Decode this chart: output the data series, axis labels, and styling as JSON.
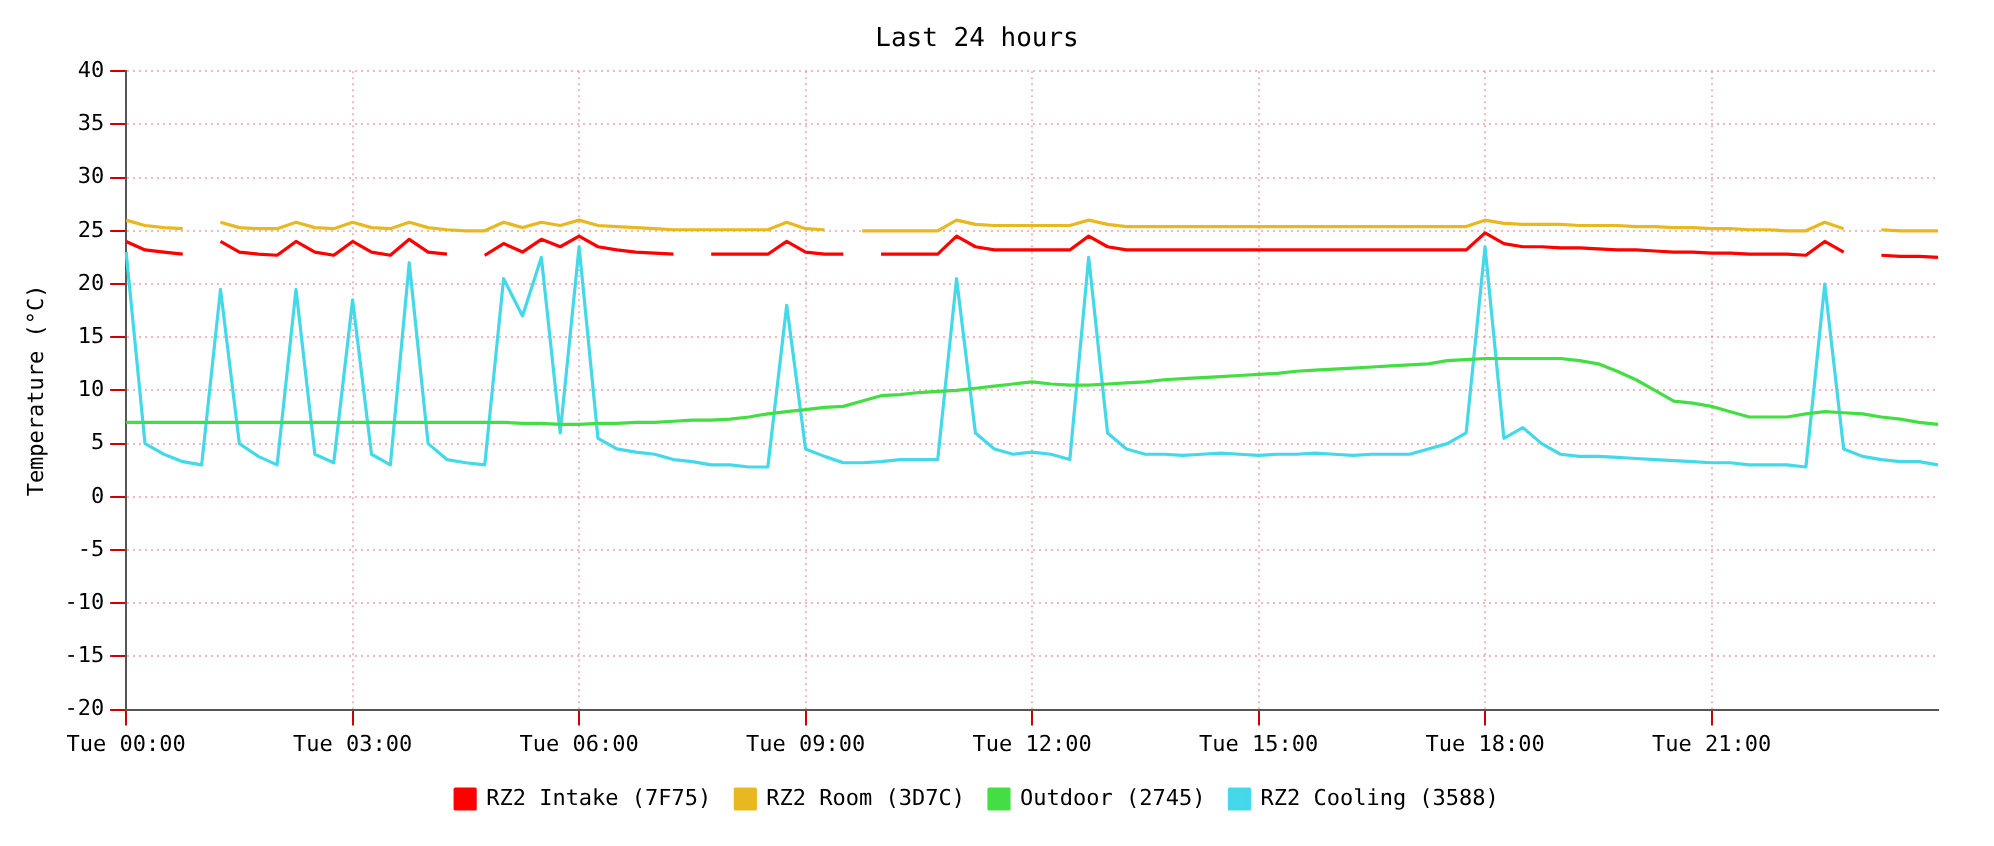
{
  "chart_data": {
    "type": "line",
    "title": "Last 24 hours",
    "ylabel": "Temperature (°C)",
    "categories": [
      "Tue 00:00",
      null,
      null,
      null,
      null,
      null,
      null,
      null,
      null,
      null,
      null,
      null,
      "Tue 03:00",
      null,
      null,
      null,
      null,
      null,
      null,
      null,
      null,
      null,
      null,
      null,
      "Tue 06:00",
      null,
      null,
      null,
      null,
      null,
      null,
      null,
      null,
      null,
      null,
      null,
      "Tue 09:00",
      null,
      null,
      null,
      null,
      null,
      null,
      null,
      null,
      null,
      null,
      null,
      "Tue 12:00",
      null,
      null,
      null,
      null,
      null,
      null,
      null,
      null,
      null,
      null,
      null,
      "Tue 15:00",
      null,
      null,
      null,
      null,
      null,
      null,
      null,
      null,
      null,
      null,
      null,
      "Tue 18:00",
      null,
      null,
      null,
      null,
      null,
      null,
      null,
      null,
      null,
      null,
      null,
      "Tue 21:00",
      null,
      null,
      null,
      null,
      null,
      null,
      null,
      null,
      null,
      null,
      null,
      null
    ],
    "ylim": [
      -20,
      40
    ],
    "yticks": [
      -20,
      -15,
      -10,
      -5,
      0,
      5,
      10,
      15,
      20,
      25,
      30,
      35,
      40
    ],
    "grid": true,
    "legend": "bottom",
    "series": [
      {
        "name": "RZ2 Intake (7F75)",
        "color": "#ff0000",
        "values": [
          24,
          23.2,
          23,
          22.8,
          null,
          24,
          23,
          22.8,
          22.7,
          24,
          23,
          22.7,
          24,
          23,
          22.7,
          24.2,
          23,
          22.8,
          null,
          22.7,
          23.8,
          23,
          24.2,
          23.5,
          24.5,
          23.5,
          23.2,
          23,
          22.9,
          22.8,
          null,
          22.8,
          22.8,
          22.8,
          22.8,
          24,
          23,
          22.8,
          22.8,
          null,
          22.8,
          22.8,
          22.8,
          22.8,
          24.5,
          23.5,
          23.2,
          23.2,
          23.2,
          23.2,
          23.2,
          24.5,
          23.5,
          23.2,
          23.2,
          23.2,
          23.2,
          23.2,
          23.2,
          23.2,
          23.2,
          23.2,
          23.2,
          23.2,
          23.2,
          23.2,
          23.2,
          23.2,
          23.2,
          23.2,
          23.2,
          23.2,
          24.8,
          23.8,
          23.5,
          23.5,
          23.4,
          23.4,
          23.3,
          23.2,
          23.2,
          23.1,
          23,
          23,
          22.9,
          22.9,
          22.8,
          22.8,
          22.8,
          22.7,
          24,
          23,
          null,
          22.7,
          22.6,
          22.6,
          22.5
        ]
      },
      {
        "name": "RZ2 Room (3D7C)",
        "color": "#e8b820",
        "values": [
          26,
          25.5,
          25.3,
          25.2,
          null,
          25.8,
          25.3,
          25.2,
          25.2,
          25.8,
          25.3,
          25.2,
          25.8,
          25.3,
          25.2,
          25.8,
          25.3,
          25.1,
          25,
          25,
          25.8,
          25.3,
          25.8,
          25.5,
          26,
          25.5,
          25.4,
          25.3,
          25.2,
          25.1,
          25.1,
          25.1,
          25.1,
          25.1,
          25.1,
          25.8,
          25.2,
          25.1,
          null,
          25,
          25,
          25,
          25,
          25,
          26,
          25.6,
          25.5,
          25.5,
          25.5,
          25.5,
          25.5,
          26,
          25.6,
          25.4,
          25.4,
          25.4,
          25.4,
          25.4,
          25.4,
          25.4,
          25.4,
          25.4,
          25.4,
          25.4,
          25.4,
          25.4,
          25.4,
          25.4,
          25.4,
          25.4,
          25.4,
          25.4,
          26,
          25.7,
          25.6,
          25.6,
          25.6,
          25.5,
          25.5,
          25.5,
          25.4,
          25.4,
          25.3,
          25.3,
          25.2,
          25.2,
          25.1,
          25.1,
          25,
          25,
          25.8,
          25.2,
          null,
          25.1,
          25,
          25,
          25
        ]
      },
      {
        "name": "Outdoor (2745)",
        "color": "#44dd44",
        "values": [
          7,
          7,
          7,
          7,
          7,
          7,
          7,
          7,
          7,
          7,
          7,
          7,
          7,
          7,
          7,
          7,
          7,
          7,
          7,
          7,
          7,
          6.9,
          6.9,
          6.8,
          6.8,
          6.9,
          6.9,
          7,
          7,
          7.1,
          7.2,
          7.2,
          7.3,
          7.5,
          7.8,
          8,
          8.2,
          8.4,
          8.5,
          9,
          9.5,
          9.6,
          9.8,
          9.9,
          10,
          10.2,
          10.4,
          10.6,
          10.8,
          10.6,
          10.5,
          10.5,
          10.6,
          10.7,
          10.8,
          11,
          11.1,
          11.2,
          11.3,
          11.4,
          11.5,
          11.6,
          11.8,
          11.9,
          12,
          12.1,
          12.2,
          12.3,
          12.4,
          12.5,
          12.8,
          12.9,
          13,
          13,
          13,
          13,
          13,
          12.8,
          12.5,
          11.8,
          11,
          10,
          9,
          8.8,
          8.5,
          8,
          7.5,
          7.5,
          7.5,
          7.8,
          8,
          7.9,
          7.8,
          7.5,
          7.3,
          7,
          6.8
        ]
      },
      {
        "name": "RZ2 Cooling (3588)",
        "color": "#44d8e8",
        "values": [
          23,
          5,
          4,
          3.3,
          3,
          19.5,
          5,
          3.8,
          3,
          19.5,
          4,
          3.2,
          18.5,
          4,
          3,
          22,
          5,
          3.5,
          3.2,
          3,
          20.5,
          17,
          22.5,
          6,
          23.5,
          5.5,
          4.5,
          4.2,
          4,
          3.5,
          3.3,
          3,
          3,
          2.8,
          2.8,
          18,
          4.5,
          3.8,
          3.2,
          3.2,
          3.3,
          3.5,
          3.5,
          3.5,
          20.5,
          6,
          4.5,
          4,
          4.2,
          4,
          3.5,
          22.5,
          6,
          4.5,
          4,
          4,
          3.9,
          4,
          4.1,
          4,
          3.9,
          4,
          4,
          4.1,
          4,
          3.9,
          4,
          4,
          4,
          4.5,
          5,
          6,
          23.5,
          5.5,
          6.5,
          5,
          4,
          3.8,
          3.8,
          3.7,
          3.6,
          3.5,
          3.4,
          3.3,
          3.2,
          3.2,
          3,
          3,
          3,
          2.8,
          20,
          4.5,
          3.8,
          3.5,
          3.3,
          3.3,
          3
        ]
      }
    ]
  }
}
